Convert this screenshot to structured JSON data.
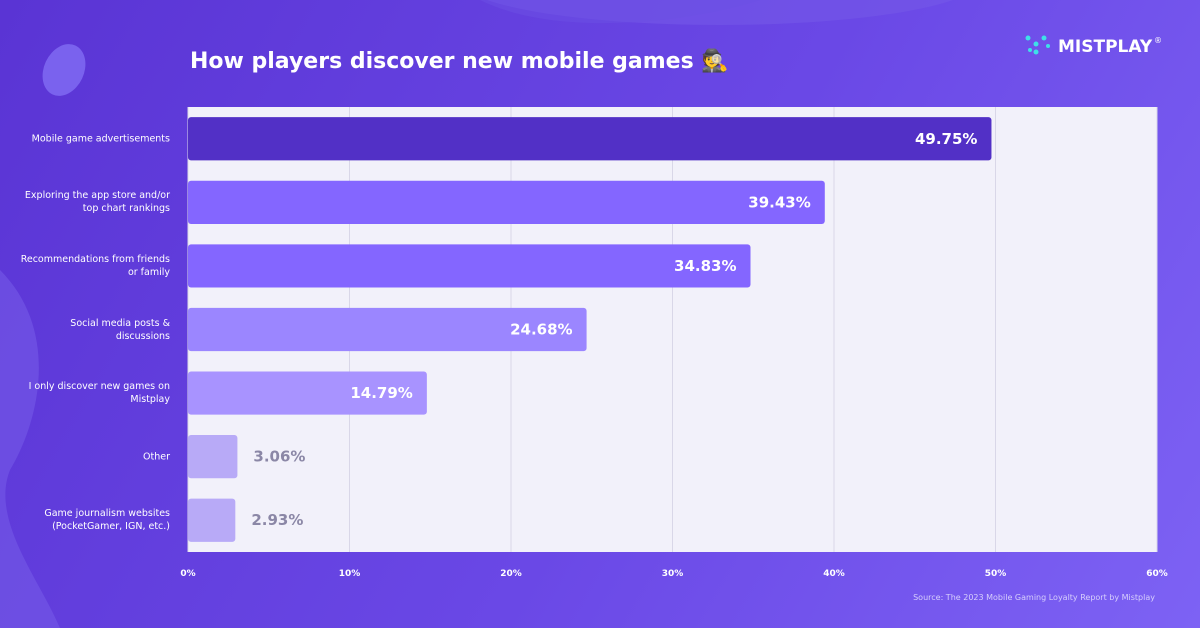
{
  "chart_data": {
    "type": "hbar",
    "title": "How players discover new mobile games 🕵️",
    "brand": "MISTPLAY",
    "brand_mark": "®",
    "source": "Source: The 2023 Mobile Gaming Loyalty Report by Mistplay",
    "categories": [
      "Mobile game advertisements",
      "Exploring the app store and/or top chart rankings",
      "Recommendations from friends or family",
      "Social media posts & discussions",
      "I only discover new games on Mistplay",
      "Other",
      "Game journalism websites (PocketGamer, IGN, etc.)"
    ],
    "values": [
      49.75,
      39.43,
      34.83,
      24.68,
      14.79,
      3.06,
      2.93
    ],
    "value_labels": [
      "49.75%",
      "39.43%",
      "34.83%",
      "24.68%",
      "14.79%",
      "3.06%",
      "2.93%"
    ],
    "colors": [
      "#5230c6",
      "#8466ff",
      "#8466ff",
      "#9b86ff",
      "#a893ff",
      "#b8aaf7",
      "#b8aaf7"
    ],
    "xlim": [
      0,
      60
    ],
    "xticks": [
      {
        "value": 0,
        "label": "0%"
      },
      {
        "value": 10,
        "label": "10%"
      },
      {
        "value": 20,
        "label": "20%"
      },
      {
        "value": 30,
        "label": "30%"
      },
      {
        "value": 40,
        "label": "40%"
      },
      {
        "value": 50,
        "label": "50%"
      },
      {
        "value": 60,
        "label": "60%"
      }
    ],
    "grid": true
  }
}
